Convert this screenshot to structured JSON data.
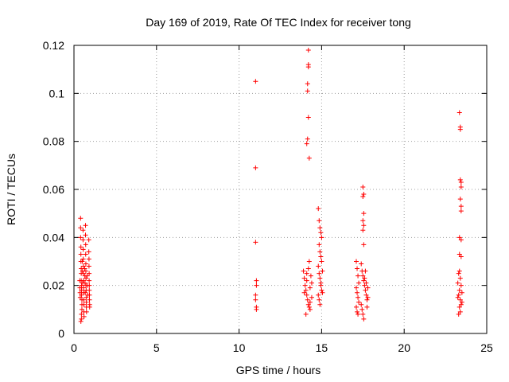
{
  "chart_data": {
    "type": "scatter",
    "title": "Day 169 of 2019, Rate Of TEC Index for receiver tong",
    "xlabel": "GPS time / hours",
    "ylabel": "ROTI / TECUs",
    "xlim": [
      0,
      25
    ],
    "ylim": [
      0,
      0.12
    ],
    "xticks": [
      0,
      5,
      10,
      15,
      20,
      25
    ],
    "xtick_labels": [
      "0",
      "5",
      "10",
      "15",
      "20",
      "25"
    ],
    "yticks": [
      0,
      0.02,
      0.04,
      0.06,
      0.08,
      0.1,
      0.12
    ],
    "ytick_labels": [
      "0",
      "0.02",
      "0.04",
      "0.06",
      "0.08",
      "0.1",
      "0.12"
    ],
    "grid": true,
    "marker": "+",
    "series": [
      {
        "name": "ROTI",
        "color": "#ff0000",
        "points": [
          [
            0.4,
            0.048
          ],
          [
            0.4,
            0.044
          ],
          [
            0.4,
            0.04
          ],
          [
            0.42,
            0.036
          ],
          [
            0.42,
            0.033
          ],
          [
            0.42,
            0.03
          ],
          [
            0.44,
            0.027
          ],
          [
            0.44,
            0.025
          ],
          [
            0.44,
            0.022
          ],
          [
            0.46,
            0.02
          ],
          [
            0.46,
            0.018
          ],
          [
            0.46,
            0.016
          ],
          [
            0.48,
            0.014
          ],
          [
            0.48,
            0.012
          ],
          [
            0.48,
            0.01
          ],
          [
            0.45,
            0.008
          ],
          [
            0.45,
            0.006
          ],
          [
            0.42,
            0.005
          ],
          [
            0.55,
            0.043
          ],
          [
            0.55,
            0.039
          ],
          [
            0.56,
            0.035
          ],
          [
            0.56,
            0.031
          ],
          [
            0.57,
            0.028
          ],
          [
            0.57,
            0.025
          ],
          [
            0.58,
            0.022
          ],
          [
            0.58,
            0.019
          ],
          [
            0.59,
            0.017
          ],
          [
            0.59,
            0.014
          ],
          [
            0.6,
            0.012
          ],
          [
            0.6,
            0.009
          ],
          [
            0.61,
            0.007
          ],
          [
            0.7,
            0.045
          ],
          [
            0.7,
            0.041
          ],
          [
            0.71,
            0.037
          ],
          [
            0.71,
            0.033
          ],
          [
            0.72,
            0.029
          ],
          [
            0.72,
            0.026
          ],
          [
            0.73,
            0.023
          ],
          [
            0.73,
            0.02
          ],
          [
            0.74,
            0.018
          ],
          [
            0.74,
            0.015
          ],
          [
            0.75,
            0.013
          ],
          [
            0.75,
            0.011
          ],
          [
            0.76,
            0.009
          ],
          [
            0.9,
            0.039
          ],
          [
            0.9,
            0.034
          ],
          [
            0.91,
            0.031
          ],
          [
            0.91,
            0.028
          ],
          [
            0.92,
            0.025
          ],
          [
            0.92,
            0.022
          ],
          [
            0.93,
            0.02
          ],
          [
            0.93,
            0.018
          ],
          [
            0.94,
            0.016
          ],
          [
            0.94,
            0.014
          ],
          [
            0.95,
            0.012
          ],
          [
            0.95,
            0.011
          ],
          [
            0.35,
            0.022
          ],
          [
            0.36,
            0.019
          ],
          [
            0.37,
            0.017
          ],
          [
            0.38,
            0.015
          ],
          [
            0.5,
            0.03
          ],
          [
            0.52,
            0.026
          ],
          [
            0.53,
            0.021
          ],
          [
            0.65,
            0.027
          ],
          [
            0.66,
            0.024
          ],
          [
            0.67,
            0.021
          ],
          [
            0.68,
            0.017
          ],
          [
            0.8,
            0.024
          ],
          [
            0.82,
            0.02
          ],
          [
            0.84,
            0.016
          ],
          [
            11.0,
            0.105
          ],
          [
            11.0,
            0.069
          ],
          [
            11.0,
            0.038
          ],
          [
            11.05,
            0.022
          ],
          [
            11.05,
            0.02
          ],
          [
            11.0,
            0.016
          ],
          [
            11.0,
            0.014
          ],
          [
            11.05,
            0.011
          ],
          [
            11.05,
            0.01
          ],
          [
            14.1,
            0.079
          ],
          [
            14.15,
            0.081
          ],
          [
            14.2,
            0.09
          ],
          [
            14.15,
            0.101
          ],
          [
            14.15,
            0.104
          ],
          [
            14.2,
            0.111
          ],
          [
            14.2,
            0.112
          ],
          [
            14.2,
            0.118
          ],
          [
            14.25,
            0.073
          ],
          [
            13.9,
            0.026
          ],
          [
            13.95,
            0.023
          ],
          [
            14.0,
            0.02
          ],
          [
            14.05,
            0.018
          ],
          [
            14.1,
            0.016
          ],
          [
            14.15,
            0.014
          ],
          [
            14.2,
            0.012
          ],
          [
            14.25,
            0.011
          ],
          [
            14.3,
            0.01
          ],
          [
            14.05,
            0.008
          ],
          [
            14.1,
            0.022
          ],
          [
            14.2,
            0.027
          ],
          [
            14.25,
            0.03
          ],
          [
            14.3,
            0.019
          ],
          [
            14.35,
            0.024
          ],
          [
            14.4,
            0.015
          ],
          [
            14.4,
            0.021
          ],
          [
            14.1,
            0.025
          ],
          [
            13.95,
            0.017
          ],
          [
            14.3,
            0.013
          ],
          [
            14.8,
            0.052
          ],
          [
            14.85,
            0.047
          ],
          [
            14.9,
            0.044
          ],
          [
            14.95,
            0.042
          ],
          [
            15.0,
            0.04
          ],
          [
            14.85,
            0.037
          ],
          [
            14.9,
            0.034
          ],
          [
            14.95,
            0.032
          ],
          [
            15.0,
            0.03
          ],
          [
            14.8,
            0.028
          ],
          [
            14.85,
            0.025
          ],
          [
            14.9,
            0.023
          ],
          [
            14.95,
            0.02
          ],
          [
            15.0,
            0.018
          ],
          [
            14.8,
            0.016
          ],
          [
            14.85,
            0.014
          ],
          [
            14.9,
            0.012
          ],
          [
            14.95,
            0.021
          ],
          [
            15.05,
            0.026
          ],
          [
            15.05,
            0.017
          ],
          [
            17.1,
            0.03
          ],
          [
            17.15,
            0.027
          ],
          [
            17.2,
            0.024
          ],
          [
            17.25,
            0.021
          ],
          [
            17.1,
            0.019
          ],
          [
            17.15,
            0.017
          ],
          [
            17.2,
            0.015
          ],
          [
            17.25,
            0.013
          ],
          [
            17.1,
            0.011
          ],
          [
            17.15,
            0.009
          ],
          [
            17.2,
            0.008
          ],
          [
            17.5,
            0.061
          ],
          [
            17.55,
            0.058
          ],
          [
            17.5,
            0.057
          ],
          [
            17.55,
            0.05
          ],
          [
            17.5,
            0.047
          ],
          [
            17.55,
            0.045
          ],
          [
            17.5,
            0.043
          ],
          [
            17.55,
            0.037
          ],
          [
            17.4,
            0.029
          ],
          [
            17.45,
            0.026
          ],
          [
            17.5,
            0.024
          ],
          [
            17.55,
            0.022
          ],
          [
            17.6,
            0.02
          ],
          [
            17.65,
            0.018
          ],
          [
            17.7,
            0.016
          ],
          [
            17.75,
            0.014
          ],
          [
            17.4,
            0.012
          ],
          [
            17.45,
            0.01
          ],
          [
            17.5,
            0.008
          ],
          [
            17.55,
            0.006
          ],
          [
            17.6,
            0.023
          ],
          [
            17.65,
            0.026
          ],
          [
            17.7,
            0.021
          ],
          [
            17.75,
            0.011
          ],
          [
            17.8,
            0.019
          ],
          [
            17.8,
            0.015
          ],
          [
            23.35,
            0.092
          ],
          [
            23.4,
            0.086
          ],
          [
            23.4,
            0.085
          ],
          [
            23.4,
            0.064
          ],
          [
            23.45,
            0.063
          ],
          [
            23.45,
            0.061
          ],
          [
            23.4,
            0.056
          ],
          [
            23.45,
            0.053
          ],
          [
            23.45,
            0.051
          ],
          [
            23.35,
            0.04
          ],
          [
            23.45,
            0.039
          ],
          [
            23.35,
            0.033
          ],
          [
            23.45,
            0.032
          ],
          [
            23.35,
            0.026
          ],
          [
            23.3,
            0.025
          ],
          [
            23.4,
            0.023
          ],
          [
            23.45,
            0.02
          ],
          [
            23.35,
            0.018
          ],
          [
            23.3,
            0.016
          ],
          [
            23.4,
            0.014
          ],
          [
            23.45,
            0.012
          ],
          [
            23.35,
            0.011
          ],
          [
            23.4,
            0.009
          ],
          [
            23.3,
            0.008
          ],
          [
            23.5,
            0.017
          ],
          [
            23.5,
            0.013
          ],
          [
            23.25,
            0.015
          ],
          [
            23.25,
            0.021
          ]
        ]
      }
    ]
  }
}
